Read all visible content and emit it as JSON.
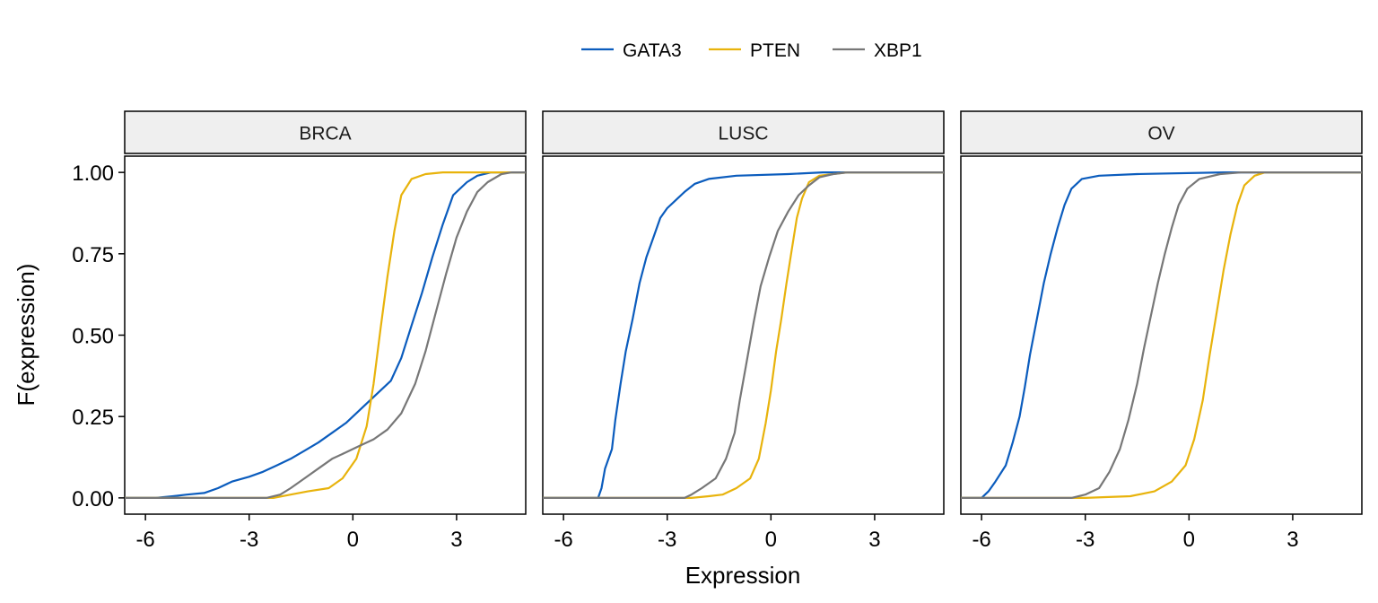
{
  "chart_data": {
    "type": "line",
    "subtype": "empirical-cdf-facets",
    "xlabel": "Expression",
    "ylabel": "F(expression)",
    "xlim": [
      -6.6,
      5.0
    ],
    "ylim": [
      -0.05,
      1.05
    ],
    "x_ticks": [
      -6,
      -3,
      0,
      3
    ],
    "x_tick_labels": [
      "-6",
      "-3",
      "0",
      "3"
    ],
    "y_ticks": [
      0,
      0.25,
      0.5,
      0.75,
      1.0
    ],
    "y_tick_labels": [
      "0.00",
      "0.25",
      "0.50",
      "0.75",
      "1.00"
    ],
    "legend": {
      "position": "top-center",
      "entries": [
        {
          "name": "GATA3",
          "color": "#0b5cbd"
        },
        {
          "name": "PTEN",
          "color": "#e8b30c"
        },
        {
          "name": "XBP1",
          "color": "#777777"
        }
      ]
    },
    "panels": [
      {
        "label": "BRCA",
        "series": [
          {
            "name": "GATA3",
            "color": "#0b5cbd",
            "points": [
              [
                -6.6,
                0
              ],
              [
                -5.7,
                0
              ],
              [
                -5.2,
                0.005
              ],
              [
                -4.8,
                0.01
              ],
              [
                -4.3,
                0.015
              ],
              [
                -3.9,
                0.03
              ],
              [
                -3.5,
                0.05
              ],
              [
                -3.0,
                0.065
              ],
              [
                -2.6,
                0.08
              ],
              [
                -2.2,
                0.1
              ],
              [
                -1.8,
                0.12
              ],
              [
                -1.4,
                0.145
              ],
              [
                -1.0,
                0.17
              ],
              [
                -0.6,
                0.2
              ],
              [
                -0.2,
                0.23
              ],
              [
                0.2,
                0.27
              ],
              [
                0.6,
                0.31
              ],
              [
                1.1,
                0.36
              ],
              [
                1.4,
                0.43
              ],
              [
                1.7,
                0.53
              ],
              [
                2.0,
                0.63
              ],
              [
                2.3,
                0.74
              ],
              [
                2.6,
                0.84
              ],
              [
                2.9,
                0.93
              ],
              [
                3.3,
                0.97
              ],
              [
                3.6,
                0.99
              ],
              [
                4.0,
                1.0
              ],
              [
                5.0,
                1.0
              ]
            ]
          },
          {
            "name": "PTEN",
            "color": "#e8b30c",
            "points": [
              [
                -6.6,
                0
              ],
              [
                -2.3,
                0
              ],
              [
                -1.8,
                0.01
              ],
              [
                -1.3,
                0.02
              ],
              [
                -0.7,
                0.03
              ],
              [
                -0.3,
                0.06
              ],
              [
                0.1,
                0.12
              ],
              [
                0.4,
                0.22
              ],
              [
                0.6,
                0.35
              ],
              [
                0.8,
                0.52
              ],
              [
                1.0,
                0.68
              ],
              [
                1.2,
                0.82
              ],
              [
                1.4,
                0.93
              ],
              [
                1.7,
                0.98
              ],
              [
                2.1,
                0.995
              ],
              [
                2.6,
                1.0
              ],
              [
                5.0,
                1.0
              ]
            ]
          },
          {
            "name": "XBP1",
            "color": "#777777",
            "points": [
              [
                -6.6,
                0
              ],
              [
                -2.5,
                0
              ],
              [
                -2.1,
                0.01
              ],
              [
                -1.8,
                0.03
              ],
              [
                -1.4,
                0.06
              ],
              [
                -1.0,
                0.09
              ],
              [
                -0.6,
                0.12
              ],
              [
                -0.2,
                0.14
              ],
              [
                0.2,
                0.16
              ],
              [
                0.6,
                0.18
              ],
              [
                1.0,
                0.21
              ],
              [
                1.4,
                0.26
              ],
              [
                1.8,
                0.35
              ],
              [
                2.1,
                0.45
              ],
              [
                2.4,
                0.57
              ],
              [
                2.7,
                0.69
              ],
              [
                3.0,
                0.8
              ],
              [
                3.3,
                0.88
              ],
              [
                3.6,
                0.94
              ],
              [
                3.9,
                0.97
              ],
              [
                4.3,
                0.995
              ],
              [
                4.6,
                1.0
              ],
              [
                5.0,
                1.0
              ]
            ]
          }
        ]
      },
      {
        "label": "LUSC",
        "series": [
          {
            "name": "GATA3",
            "color": "#0b5cbd",
            "points": [
              [
                -6.6,
                0
              ],
              [
                -5.0,
                0
              ],
              [
                -4.9,
                0.03
              ],
              [
                -4.8,
                0.09
              ],
              [
                -4.6,
                0.15
              ],
              [
                -4.5,
                0.24
              ],
              [
                -4.35,
                0.35
              ],
              [
                -4.2,
                0.45
              ],
              [
                -4.0,
                0.55
              ],
              [
                -3.8,
                0.66
              ],
              [
                -3.6,
                0.74
              ],
              [
                -3.4,
                0.8
              ],
              [
                -3.2,
                0.86
              ],
              [
                -3.0,
                0.89
              ],
              [
                -2.8,
                0.91
              ],
              [
                -2.5,
                0.94
              ],
              [
                -2.2,
                0.965
              ],
              [
                -1.8,
                0.98
              ],
              [
                -1.0,
                0.99
              ],
              [
                0.5,
                0.995
              ],
              [
                1.5,
                1.0
              ],
              [
                5.0,
                1.0
              ]
            ]
          },
          {
            "name": "PTEN",
            "color": "#e8b30c",
            "points": [
              [
                -6.6,
                0
              ],
              [
                -2.3,
                0
              ],
              [
                -1.8,
                0.005
              ],
              [
                -1.4,
                0.01
              ],
              [
                -1.0,
                0.03
              ],
              [
                -0.6,
                0.06
              ],
              [
                -0.35,
                0.12
              ],
              [
                -0.15,
                0.23
              ],
              [
                0.0,
                0.33
              ],
              [
                0.15,
                0.45
              ],
              [
                0.3,
                0.55
              ],
              [
                0.45,
                0.66
              ],
              [
                0.6,
                0.76
              ],
              [
                0.75,
                0.86
              ],
              [
                0.9,
                0.92
              ],
              [
                1.1,
                0.97
              ],
              [
                1.4,
                0.99
              ],
              [
                2.2,
                1.0
              ],
              [
                5.0,
                1.0
              ]
            ]
          },
          {
            "name": "XBP1",
            "color": "#777777",
            "points": [
              [
                -6.6,
                0
              ],
              [
                -2.5,
                0
              ],
              [
                -2.3,
                0.01
              ],
              [
                -2.0,
                0.03
              ],
              [
                -1.6,
                0.06
              ],
              [
                -1.3,
                0.12
              ],
              [
                -1.05,
                0.2
              ],
              [
                -0.9,
                0.3
              ],
              [
                -0.7,
                0.42
              ],
              [
                -0.5,
                0.54
              ],
              [
                -0.3,
                0.65
              ],
              [
                -0.05,
                0.74
              ],
              [
                0.2,
                0.82
              ],
              [
                0.5,
                0.88
              ],
              [
                0.8,
                0.93
              ],
              [
                1.1,
                0.96
              ],
              [
                1.4,
                0.985
              ],
              [
                1.8,
                0.995
              ],
              [
                2.2,
                1.0
              ],
              [
                5.0,
                1.0
              ]
            ]
          }
        ]
      },
      {
        "label": "OV",
        "series": [
          {
            "name": "GATA3",
            "color": "#0b5cbd",
            "points": [
              [
                -6.6,
                0
              ],
              [
                -6.0,
                0
              ],
              [
                -5.8,
                0.02
              ],
              [
                -5.6,
                0.05
              ],
              [
                -5.3,
                0.1
              ],
              [
                -5.1,
                0.17
              ],
              [
                -4.9,
                0.25
              ],
              [
                -4.75,
                0.34
              ],
              [
                -4.6,
                0.44
              ],
              [
                -4.4,
                0.55
              ],
              [
                -4.2,
                0.66
              ],
              [
                -4.0,
                0.75
              ],
              [
                -3.8,
                0.83
              ],
              [
                -3.6,
                0.9
              ],
              [
                -3.4,
                0.95
              ],
              [
                -3.1,
                0.98
              ],
              [
                -2.6,
                0.99
              ],
              [
                -1.5,
                0.995
              ],
              [
                1.0,
                1.0
              ],
              [
                5.0,
                1.0
              ]
            ]
          },
          {
            "name": "PTEN",
            "color": "#e8b30c",
            "points": [
              [
                -6.6,
                0
              ],
              [
                -3.0,
                0
              ],
              [
                -2.5,
                0.002
              ],
              [
                -1.7,
                0.005
              ],
              [
                -1.0,
                0.02
              ],
              [
                -0.5,
                0.05
              ],
              [
                -0.1,
                0.1
              ],
              [
                0.15,
                0.18
              ],
              [
                0.4,
                0.3
              ],
              [
                0.6,
                0.44
              ],
              [
                0.8,
                0.57
              ],
              [
                1.0,
                0.7
              ],
              [
                1.2,
                0.81
              ],
              [
                1.4,
                0.9
              ],
              [
                1.6,
                0.96
              ],
              [
                1.9,
                0.99
              ],
              [
                2.2,
                1.0
              ],
              [
                5.0,
                1.0
              ]
            ]
          },
          {
            "name": "XBP1",
            "color": "#777777",
            "points": [
              [
                -6.6,
                0
              ],
              [
                -3.4,
                0
              ],
              [
                -3.0,
                0.01
              ],
              [
                -2.6,
                0.03
              ],
              [
                -2.3,
                0.08
              ],
              [
                -2.0,
                0.15
              ],
              [
                -1.75,
                0.24
              ],
              [
                -1.5,
                0.35
              ],
              [
                -1.3,
                0.46
              ],
              [
                -1.1,
                0.56
              ],
              [
                -0.9,
                0.66
              ],
              [
                -0.7,
                0.75
              ],
              [
                -0.5,
                0.83
              ],
              [
                -0.3,
                0.9
              ],
              [
                -0.05,
                0.95
              ],
              [
                0.3,
                0.98
              ],
              [
                0.9,
                0.995
              ],
              [
                1.5,
                1.0
              ],
              [
                5.0,
                1.0
              ]
            ]
          }
        ]
      }
    ]
  }
}
